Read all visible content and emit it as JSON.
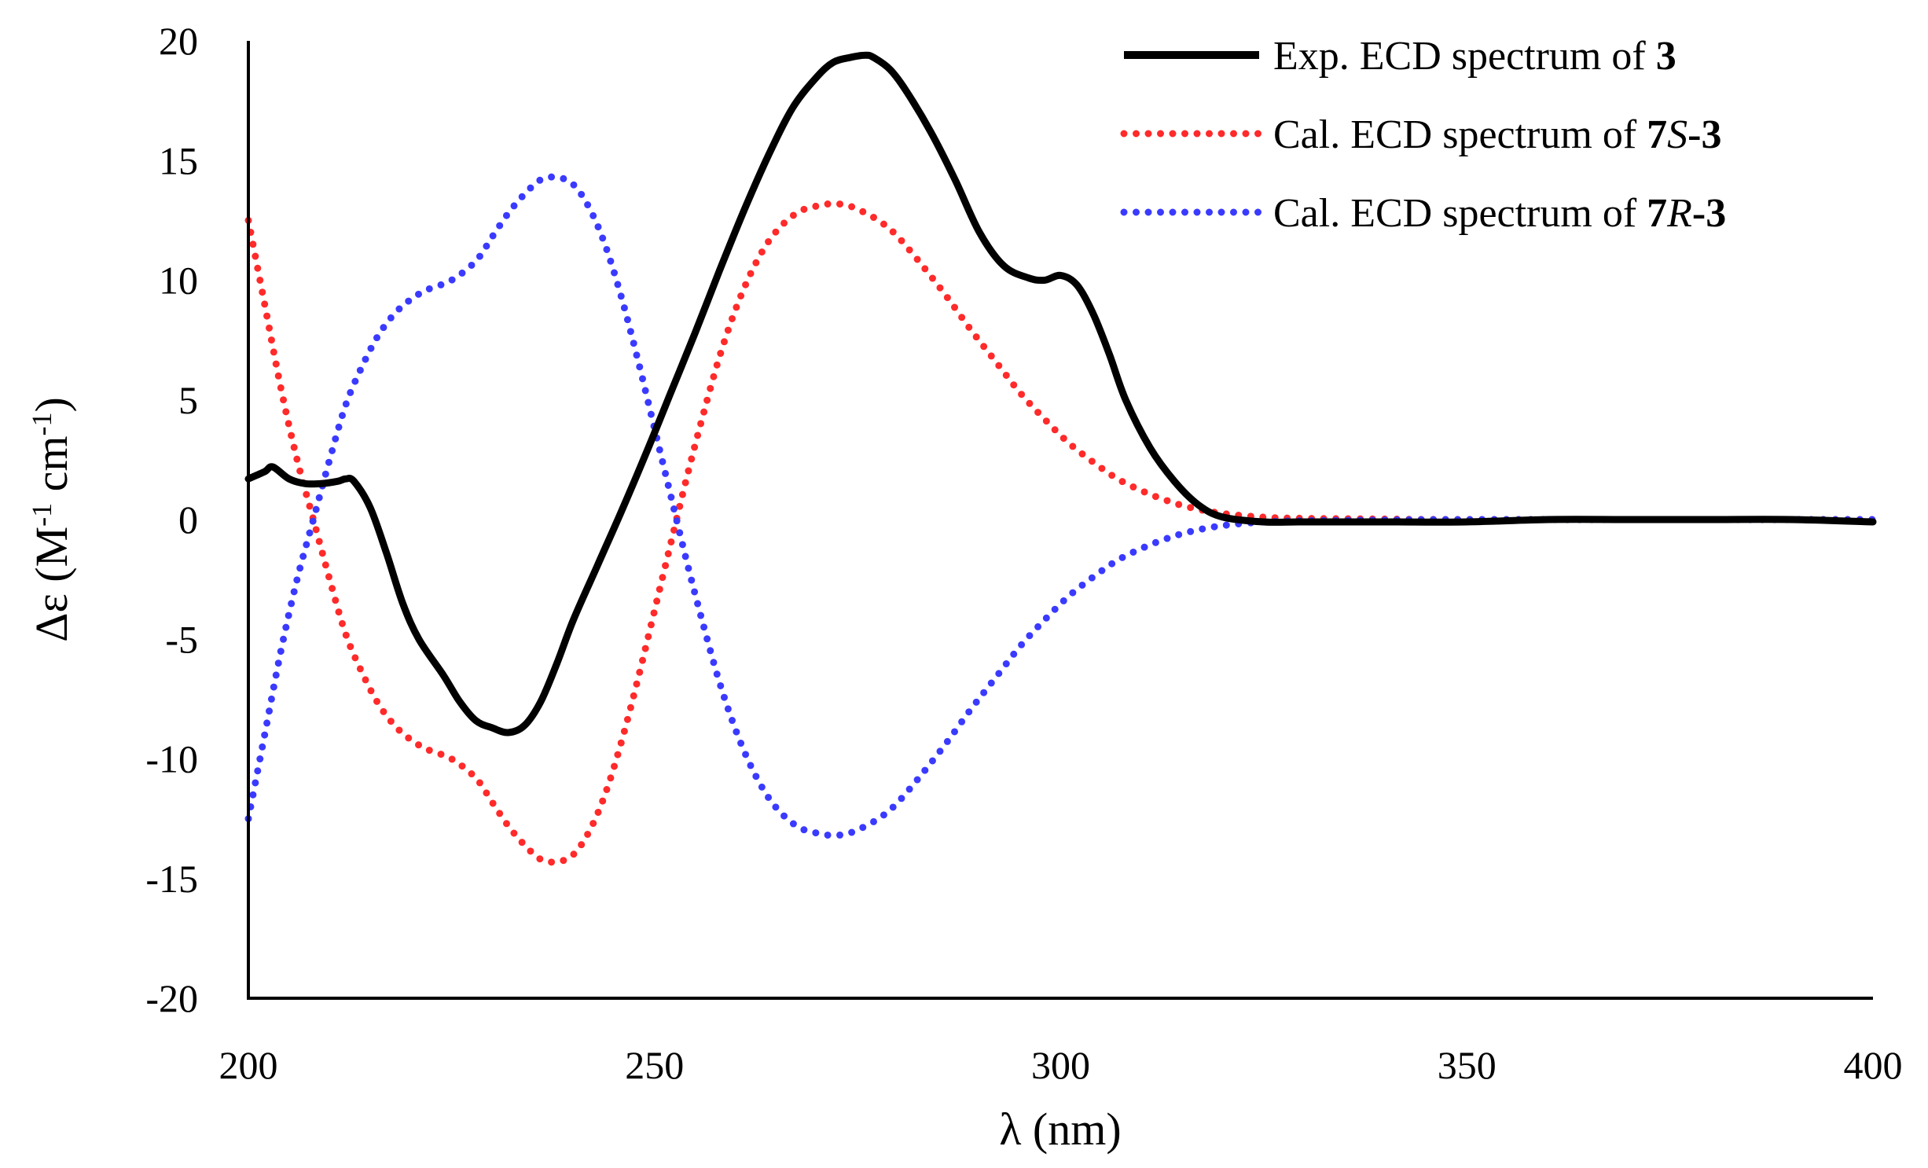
{
  "chart_data": {
    "type": "line",
    "title": "",
    "xlabel": "λ (nm)",
    "ylabel": "Δε (M",
    "ylabel_sup1": "-1",
    "ylabel_mid": " cm",
    "ylabel_sup2": "-1",
    "ylabel_end": ")",
    "xlim": [
      200,
      400
    ],
    "ylim": [
      -20,
      20
    ],
    "xticks": [
      200,
      250,
      300,
      350,
      400
    ],
    "yticks": [
      -20,
      -15,
      -10,
      -5,
      0,
      5,
      10,
      15,
      20
    ],
    "xtick_labels": [
      "200",
      "250",
      "300",
      "350",
      "400"
    ],
    "ytick_labels": [
      "-20",
      "-15",
      "-10",
      "-5",
      "0",
      "5",
      "10",
      "15",
      "20"
    ],
    "grid": false,
    "legend_position": "top-right",
    "series": [
      {
        "name": "Exp. ECD spectrum of 3",
        "legend_prefix": "Exp. ECD spectrum of ",
        "legend_bold": "3",
        "legend_italic": "",
        "legend_suffix": "",
        "color": "#000000",
        "style": "solid",
        "x": [
          200,
          202,
          203,
          205,
          207,
          209,
          211,
          212,
          213,
          215,
          217,
          219,
          221,
          224,
          226,
          228,
          230,
          232,
          234,
          236,
          238,
          240,
          243,
          246,
          249,
          252,
          255,
          258,
          261,
          264,
          267,
          270,
          272,
          274,
          276,
          277,
          279,
          281,
          284,
          287,
          290,
          293,
          296,
          298,
          300,
          302,
          304,
          306,
          308,
          311,
          314,
          317,
          320,
          325,
          330,
          340,
          350,
          360,
          370,
          380,
          390,
          400
        ],
        "y": [
          1.7,
          2.0,
          2.2,
          1.7,
          1.5,
          1.5,
          1.6,
          1.7,
          1.6,
          0.5,
          -1.4,
          -3.5,
          -5.0,
          -6.5,
          -7.6,
          -8.4,
          -8.7,
          -8.9,
          -8.6,
          -7.6,
          -6.0,
          -4.2,
          -1.9,
          0.4,
          2.8,
          5.3,
          7.8,
          10.4,
          12.9,
          15.2,
          17.2,
          18.5,
          19.1,
          19.3,
          19.4,
          19.3,
          18.8,
          17.9,
          16.2,
          14.2,
          12.0,
          10.6,
          10.1,
          10.0,
          10.2,
          9.8,
          8.6,
          6.9,
          5.0,
          3.0,
          1.6,
          0.6,
          0.1,
          -0.1,
          -0.1,
          -0.1,
          -0.1,
          0.0,
          0.0,
          0.0,
          0.0,
          -0.1
        ]
      },
      {
        "name": "Cal. ECD spectrum of 7S-3",
        "legend_prefix": "Cal. ECD spectrum of ",
        "legend_bold": "7",
        "legend_italic": "S",
        "legend_suffix": "-3",
        "color": "#ff2a2a",
        "style": "dotted",
        "x": [
          200,
          202,
          204,
          206,
          208,
          210,
          212,
          214,
          216,
          218,
          220,
          222,
          225,
          228,
          230,
          232,
          234,
          236,
          238,
          240,
          242,
          244,
          246,
          248,
          250,
          252,
          254,
          256,
          258,
          260,
          262,
          264,
          266,
          268,
          270,
          272,
          274,
          276,
          278,
          280,
          283,
          286,
          289,
          292,
          295,
          298,
          301,
          304,
          307,
          310,
          313,
          316,
          320,
          325,
          330,
          340,
          350,
          400
        ],
        "y": [
          12.5,
          9.0,
          5.5,
          2.5,
          0.0,
          -2.5,
          -4.8,
          -6.4,
          -7.7,
          -8.6,
          -9.2,
          -9.6,
          -10.0,
          -10.8,
          -11.8,
          -12.8,
          -13.6,
          -14.2,
          -14.3,
          -14.0,
          -13.0,
          -11.4,
          -9.2,
          -6.6,
          -3.8,
          -1.0,
          1.8,
          4.4,
          6.8,
          8.8,
          10.4,
          11.6,
          12.4,
          12.9,
          13.1,
          13.2,
          13.1,
          12.8,
          12.4,
          11.8,
          10.6,
          9.3,
          7.9,
          6.6,
          5.3,
          4.2,
          3.2,
          2.4,
          1.7,
          1.2,
          0.8,
          0.5,
          0.25,
          0.1,
          0.05,
          0.02,
          0.0,
          0.0
        ]
      },
      {
        "name": "Cal. ECD spectrum of 7R-3",
        "legend_prefix": "Cal. ECD spectrum of ",
        "legend_bold": "7",
        "legend_italic": "R",
        "legend_suffix": "-3",
        "color": "#3a3aff",
        "style": "dotted",
        "x": [
          200,
          202,
          204,
          206,
          208,
          210,
          212,
          214,
          216,
          218,
          220,
          222,
          225,
          228,
          230,
          232,
          234,
          236,
          238,
          240,
          242,
          244,
          246,
          248,
          250,
          252,
          254,
          256,
          258,
          260,
          262,
          264,
          266,
          268,
          270,
          272,
          274,
          276,
          278,
          280,
          283,
          286,
          289,
          292,
          295,
          298,
          301,
          304,
          307,
          310,
          313,
          316,
          320,
          325,
          330,
          340,
          350,
          400
        ],
        "y": [
          -12.5,
          -9.0,
          -5.5,
          -2.5,
          0.0,
          2.5,
          4.8,
          6.4,
          7.7,
          8.6,
          9.2,
          9.6,
          10.0,
          10.8,
          11.8,
          12.8,
          13.6,
          14.2,
          14.3,
          14.0,
          13.0,
          11.4,
          9.2,
          6.6,
          3.8,
          1.0,
          -1.8,
          -4.4,
          -6.8,
          -8.8,
          -10.4,
          -11.6,
          -12.4,
          -12.9,
          -13.1,
          -13.2,
          -13.1,
          -12.8,
          -12.4,
          -11.8,
          -10.6,
          -9.3,
          -7.9,
          -6.6,
          -5.3,
          -4.2,
          -3.2,
          -2.4,
          -1.7,
          -1.2,
          -0.8,
          -0.5,
          -0.25,
          -0.1,
          -0.05,
          -0.02,
          0.0,
          0.0
        ]
      }
    ]
  }
}
